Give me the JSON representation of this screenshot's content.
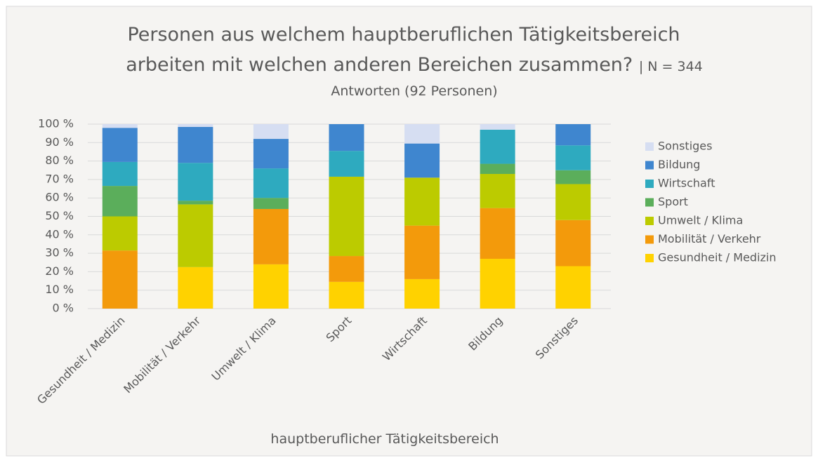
{
  "chart_data": {
    "type": "stacked_bar",
    "title": [
      "Personen aus welchem hauptberuflichen Tätigkeitsbereich",
      "arbeiten mit welchen anderen Bereichen zusammen?"
    ],
    "title_note": "| N = 344",
    "subtitle": "Antworten (92 Personen)",
    "x_label": "hauptberuflicher Tätigkeitsbereich",
    "categories": [
      "Gesundheit / Medizin",
      "Mobilität / Verkehr",
      "Umwelt / Klima",
      "Sport",
      "Wirtschaft",
      "Bildung",
      "Sonstiges"
    ],
    "series": [
      {
        "name": "Gesundheit / Medizin",
        "color": "#FFD200",
        "values": [
          0,
          22.5,
          24,
          14.5,
          16,
          27,
          23
        ]
      },
      {
        "name": "Mobilität / Verkehr",
        "color": "#F39A0B",
        "values": [
          31.5,
          0,
          30,
          14,
          29,
          27.5,
          25
        ]
      },
      {
        "name": "Umwelt / Klima",
        "color": "#BCCB00",
        "values": [
          18.5,
          34,
          0,
          43,
          26,
          18.5,
          19.5
        ]
      },
      {
        "name": "Sport",
        "color": "#5BAE5B",
        "values": [
          16.5,
          2,
          6,
          0,
          0,
          5.5,
          7.5
        ]
      },
      {
        "name": "Wirtschaft",
        "color": "#2EAABF",
        "values": [
          13,
          20.5,
          16,
          14,
          0,
          18.5,
          13.5
        ]
      },
      {
        "name": "Bildung",
        "color": "#3F86CF",
        "values": [
          18.5,
          19.5,
          16,
          14.5,
          18.5,
          0,
          11.5
        ]
      },
      {
        "name": "Sonstiges",
        "color": "#D6DEF2",
        "values": [
          2,
          1.5,
          8,
          0,
          10.5,
          3,
          0
        ]
      }
    ],
    "ylim": [
      0,
      100
    ],
    "yticks": [
      {
        "value": 0,
        "label": "0 %"
      },
      {
        "value": 10,
        "label": "10 %"
      },
      {
        "value": 20,
        "label": "20 %"
      },
      {
        "value": 30,
        "label": "30 %"
      },
      {
        "value": 40,
        "label": "40 %"
      },
      {
        "value": 50,
        "label": "50 %"
      },
      {
        "value": 60,
        "label": "60 %"
      },
      {
        "value": 70,
        "label": "70 %"
      },
      {
        "value": 80,
        "label": "80 %"
      },
      {
        "value": 90,
        "label": "90 %"
      },
      {
        "value": 100,
        "label": "100 %"
      }
    ],
    "grid": true,
    "legend": "right"
  }
}
